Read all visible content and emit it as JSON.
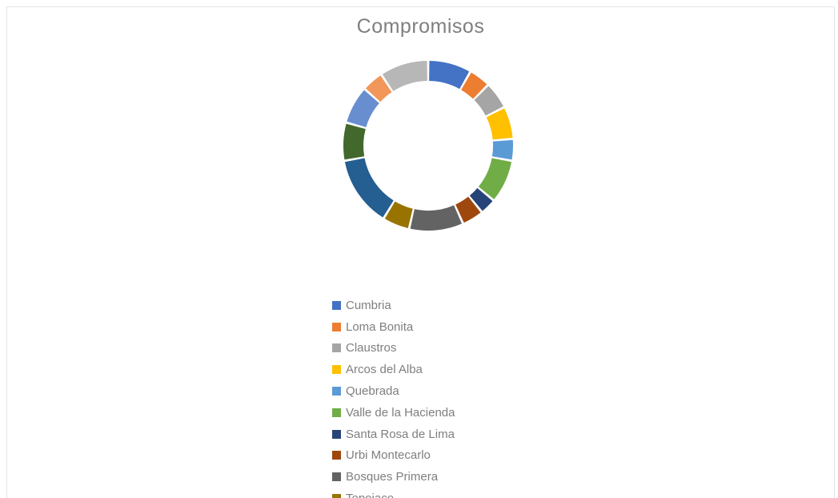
{
  "chart_data": {
    "type": "pie",
    "subtype": "donut",
    "title": "Compromisos",
    "legend_position": "bottom",
    "categories": [
      "Cumbria",
      "Loma Bonita",
      "Claustros",
      "Arcos del Alba",
      "Quebrada",
      "Valle de la Hacienda",
      "Santa Rosa de Lima",
      "Urbi Montecarlo",
      "Bosques Primera",
      "Tepojaco",
      "",
      "",
      "",
      "",
      ""
    ],
    "values": [
      8,
      4,
      5,
      6,
      4,
      8,
      3,
      4,
      10,
      5,
      13,
      7,
      7,
      4,
      9
    ],
    "colors": [
      "#4472c4",
      "#ed7d31",
      "#a5a5a5",
      "#ffc000",
      "#5b9bd5",
      "#70ad47",
      "#264478",
      "#9e480e",
      "#636363",
      "#997300",
      "#255e91",
      "#43682b",
      "#698ed0",
      "#f1975a",
      "#b7b7b7"
    ]
  }
}
